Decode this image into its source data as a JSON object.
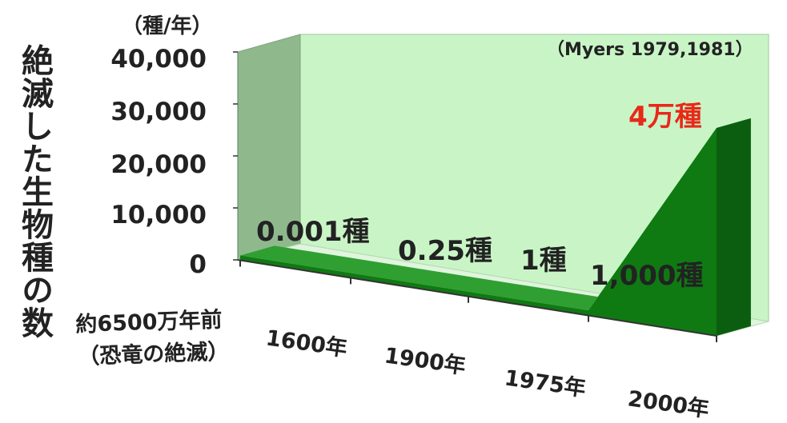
{
  "chart_data": {
    "type": "area",
    "unit_label": "（種/年）",
    "ylabel": "絶滅した生物種の数",
    "source": "（Myers 1979,1981）",
    "categories": [
      "約6500万年前（恐竜の絶滅）",
      "1600年",
      "1900年",
      "1975年",
      "2000年"
    ],
    "x_tick_lines": [
      [
        "約6500万年前",
        "（恐竜の絶滅）"
      ],
      [
        "1600年"
      ],
      [
        "1900年"
      ],
      [
        "1975年"
      ],
      [
        "2000年"
      ]
    ],
    "values": [
      0.001,
      0.25,
      1,
      1000,
      40000
    ],
    "value_labels": [
      "0.001種",
      "0.25種",
      "1種",
      "1,000種",
      "4万種"
    ],
    "highlight_index": 4,
    "ylim": [
      0,
      40000
    ],
    "yticks": [
      "40,000",
      "30,000",
      "20,000",
      "10,000",
      "0"
    ],
    "colors": {
      "series_front": "#0f7a12",
      "series_top": "#2f9f32",
      "series_side": "#0b5e0f",
      "back_wall": "#c9f5c6",
      "side_wall": "#8fb98d",
      "floor": "#dff5dc",
      "highlight_text": "#e8291a"
    }
  }
}
